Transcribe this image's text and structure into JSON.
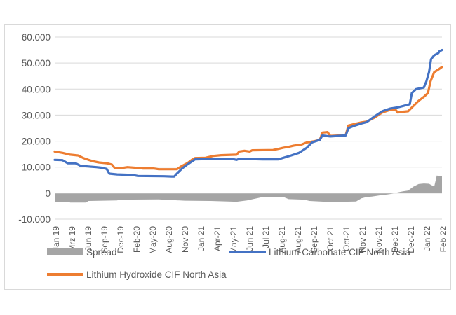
{
  "chart_data": {
    "type": "line",
    "title": "",
    "xlabel": "",
    "ylabel": "",
    "ylim": [
      -10000,
      60000
    ],
    "y_ticks": [
      -10000,
      0,
      10000,
      20000,
      30000,
      40000,
      50000,
      60000
    ],
    "y_tick_labels": [
      "-10.000",
      "0",
      "10.000",
      "20.000",
      "30.000",
      "40.000",
      "50.000",
      "60.000"
    ],
    "x_tick_labels": [
      "Jan 19",
      "Mrz 19",
      "Jun 19",
      "Sep-19",
      "Dec-19",
      "Feb-20",
      "May-20",
      "Aug-20",
      "Nov 20",
      "Jan 21",
      "Apr-21",
      "May-21",
      "Jun 21",
      "Jul 21",
      "Aug-21",
      "Aug-21",
      "Sep-21",
      "Oct 21",
      "Oct-21",
      "Nov 21",
      "Nov-21",
      "Dec 21",
      "Dec-21",
      "Jan 22",
      "Feb 22"
    ],
    "grid": "horizontal",
    "legend": "bottom",
    "colors": {
      "spread": "#a5a5a5",
      "carbonate": "#4472c4",
      "hydroxide": "#ed7d31",
      "grid": "#d9d9d9"
    },
    "series": [
      {
        "name": "Spread",
        "kind": "area",
        "color": "#a5a5a5",
        "points": [
          [
            0,
            -3300
          ],
          [
            2.5,
            -3300
          ],
          [
            3,
            -3600
          ],
          [
            6,
            -3600
          ],
          [
            6.5,
            -3000
          ],
          [
            12,
            -2800
          ],
          [
            12.5,
            -2500
          ],
          [
            20,
            -2400
          ],
          [
            25,
            -2900
          ],
          [
            30,
            -3000
          ],
          [
            35,
            -3300
          ],
          [
            37,
            -2800
          ],
          [
            40,
            -1500
          ],
          [
            44,
            -1500
          ],
          [
            45,
            -2300
          ],
          [
            48,
            -2500
          ],
          [
            49,
            -3000
          ],
          [
            52,
            -3300
          ],
          [
            53,
            -3400
          ],
          [
            58,
            -3200
          ],
          [
            59,
            -2000
          ],
          [
            60,
            -1500
          ],
          [
            61,
            -1300
          ],
          [
            62,
            -1000
          ],
          [
            63,
            -700
          ],
          [
            64,
            -500
          ],
          [
            65,
            -200
          ],
          [
            66,
            300
          ],
          [
            67,
            700
          ],
          [
            68,
            1000
          ],
          [
            69,
            2500
          ],
          [
            70,
            3500
          ],
          [
            71,
            3700
          ],
          [
            72,
            3600
          ],
          [
            73,
            2500
          ],
          [
            73.5,
            6800
          ],
          [
            74,
            6500
          ],
          [
            74.5,
            6700
          ]
        ]
      },
      {
        "name": "Lithium Carbonate CIF North Asia",
        "kind": "line",
        "color": "#4472c4",
        "points": [
          [
            0,
            12800
          ],
          [
            1.5,
            12700
          ],
          [
            2.5,
            11500
          ],
          [
            4,
            11500
          ],
          [
            5,
            10500
          ],
          [
            8,
            10000
          ],
          [
            9,
            9800
          ],
          [
            10,
            9300
          ],
          [
            10.5,
            7500
          ],
          [
            12,
            7200
          ],
          [
            15,
            7000
          ],
          [
            16,
            6600
          ],
          [
            21,
            6500
          ],
          [
            22.5,
            6400
          ],
          [
            23,
            6400
          ],
          [
            23.5,
            7500
          ],
          [
            24.5,
            9500
          ],
          [
            25.5,
            11000
          ],
          [
            27,
            13000
          ],
          [
            31,
            13200
          ],
          [
            34,
            13200
          ],
          [
            35,
            12800
          ],
          [
            35.5,
            13200
          ],
          [
            40,
            13000
          ],
          [
            43,
            13000
          ],
          [
            44,
            13600
          ],
          [
            45.5,
            14500
          ],
          [
            47,
            15500
          ],
          [
            48.5,
            17500
          ],
          [
            49.5,
            19500
          ],
          [
            51,
            20500
          ],
          [
            51.5,
            22200
          ],
          [
            53,
            21800
          ],
          [
            54.5,
            22000
          ],
          [
            56,
            22200
          ],
          [
            56.5,
            25000
          ],
          [
            57.5,
            25800
          ],
          [
            59,
            26800
          ],
          [
            60,
            27300
          ],
          [
            61.5,
            29500
          ],
          [
            63,
            31500
          ],
          [
            64.5,
            32500
          ],
          [
            66,
            33000
          ],
          [
            67,
            33500
          ],
          [
            68.3,
            34200
          ],
          [
            68.7,
            38500
          ],
          [
            69.5,
            40000
          ],
          [
            71,
            40600
          ],
          [
            71.5,
            43000
          ],
          [
            72,
            46500
          ],
          [
            72.4,
            51500
          ],
          [
            73,
            53000
          ],
          [
            73.8,
            53800
          ],
          [
            74,
            54500
          ],
          [
            74.5,
            55000
          ]
        ]
      },
      {
        "name": "Lithium Hydroxide CIF North Asia",
        "kind": "line",
        "color": "#ed7d31",
        "points": [
          [
            0,
            16000
          ],
          [
            1.5,
            15500
          ],
          [
            3,
            14800
          ],
          [
            4.5,
            14500
          ],
          [
            5.5,
            13500
          ],
          [
            6.5,
            12800
          ],
          [
            7.5,
            12200
          ],
          [
            8.5,
            11800
          ],
          [
            10,
            11500
          ],
          [
            11,
            11000
          ],
          [
            11.5,
            9800
          ],
          [
            13,
            9700
          ],
          [
            14,
            10000
          ],
          [
            16,
            9700
          ],
          [
            17,
            9500
          ],
          [
            19,
            9500
          ],
          [
            20,
            9200
          ],
          [
            23.5,
            9200
          ],
          [
            24.5,
            10500
          ],
          [
            25.5,
            11500
          ],
          [
            26.5,
            13000
          ],
          [
            27,
            13500
          ],
          [
            29,
            13600
          ],
          [
            30.5,
            14300
          ],
          [
            32,
            14600
          ],
          [
            35,
            14800
          ],
          [
            35.5,
            16000
          ],
          [
            36.5,
            16300
          ],
          [
            37.5,
            16000
          ],
          [
            38,
            16500
          ],
          [
            42,
            16600
          ],
          [
            43,
            17000
          ],
          [
            44,
            17500
          ],
          [
            45,
            17800
          ],
          [
            46,
            18300
          ],
          [
            47.5,
            18700
          ],
          [
            48.5,
            19500
          ],
          [
            50,
            20000
          ],
          [
            51,
            20500
          ],
          [
            51.5,
            23300
          ],
          [
            52.5,
            23500
          ],
          [
            53,
            22000
          ],
          [
            55,
            22200
          ],
          [
            56,
            22500
          ],
          [
            56.5,
            26000
          ],
          [
            57.5,
            26500
          ],
          [
            59,
            27200
          ],
          [
            60,
            27500
          ],
          [
            61.5,
            29000
          ],
          [
            63,
            31000
          ],
          [
            64.5,
            32000
          ],
          [
            65.5,
            32200
          ],
          [
            66,
            31000
          ],
          [
            67,
            31300
          ],
          [
            68,
            31500
          ],
          [
            69,
            33500
          ],
          [
            70,
            35500
          ],
          [
            71,
            37000
          ],
          [
            71.8,
            38500
          ],
          [
            72.3,
            43000
          ],
          [
            73,
            46500
          ],
          [
            73.8,
            47500
          ],
          [
            74.5,
            48500
          ]
        ]
      }
    ]
  }
}
